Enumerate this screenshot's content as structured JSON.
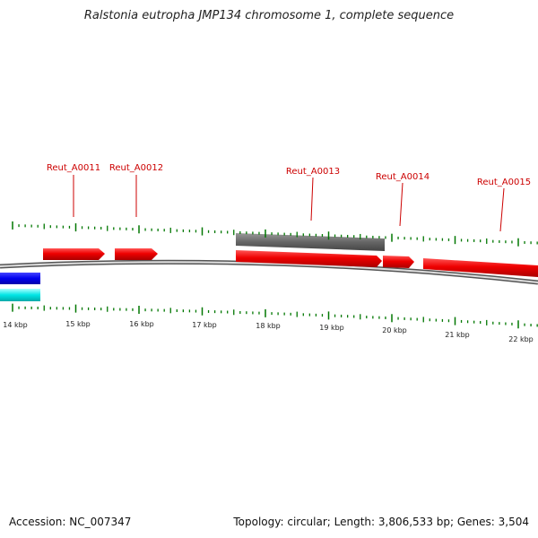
{
  "title": "Ralstonia eutropha JMP134 chromosome 1, complete sequence",
  "footer": {
    "accession": "Accession: NC_007347",
    "summary": "Topology: circular; Length: 3,806,533 bp; Genes: 3,504"
  },
  "colors": {
    "gene": "#ee0000",
    "gene_label": "#cc0000",
    "pseudo": "#666666",
    "track_blue": "#0000ee",
    "track_cyan": "#00dddd",
    "tick": "#007700",
    "backbone": "#888888"
  },
  "scale_labels": [
    "14 kbp",
    "15 kbp",
    "16 kbp",
    "17 kbp",
    "18 kbp",
    "19 kbp",
    "20 kbp",
    "21 kbp",
    "22 kbp"
  ],
  "genes": [
    {
      "label": "Reut_A0011"
    },
    {
      "label": "Reut_A0012"
    },
    {
      "label": "Reut_A0013"
    },
    {
      "label": "Reut_A0014"
    },
    {
      "label": "Reut_A0015"
    }
  ]
}
